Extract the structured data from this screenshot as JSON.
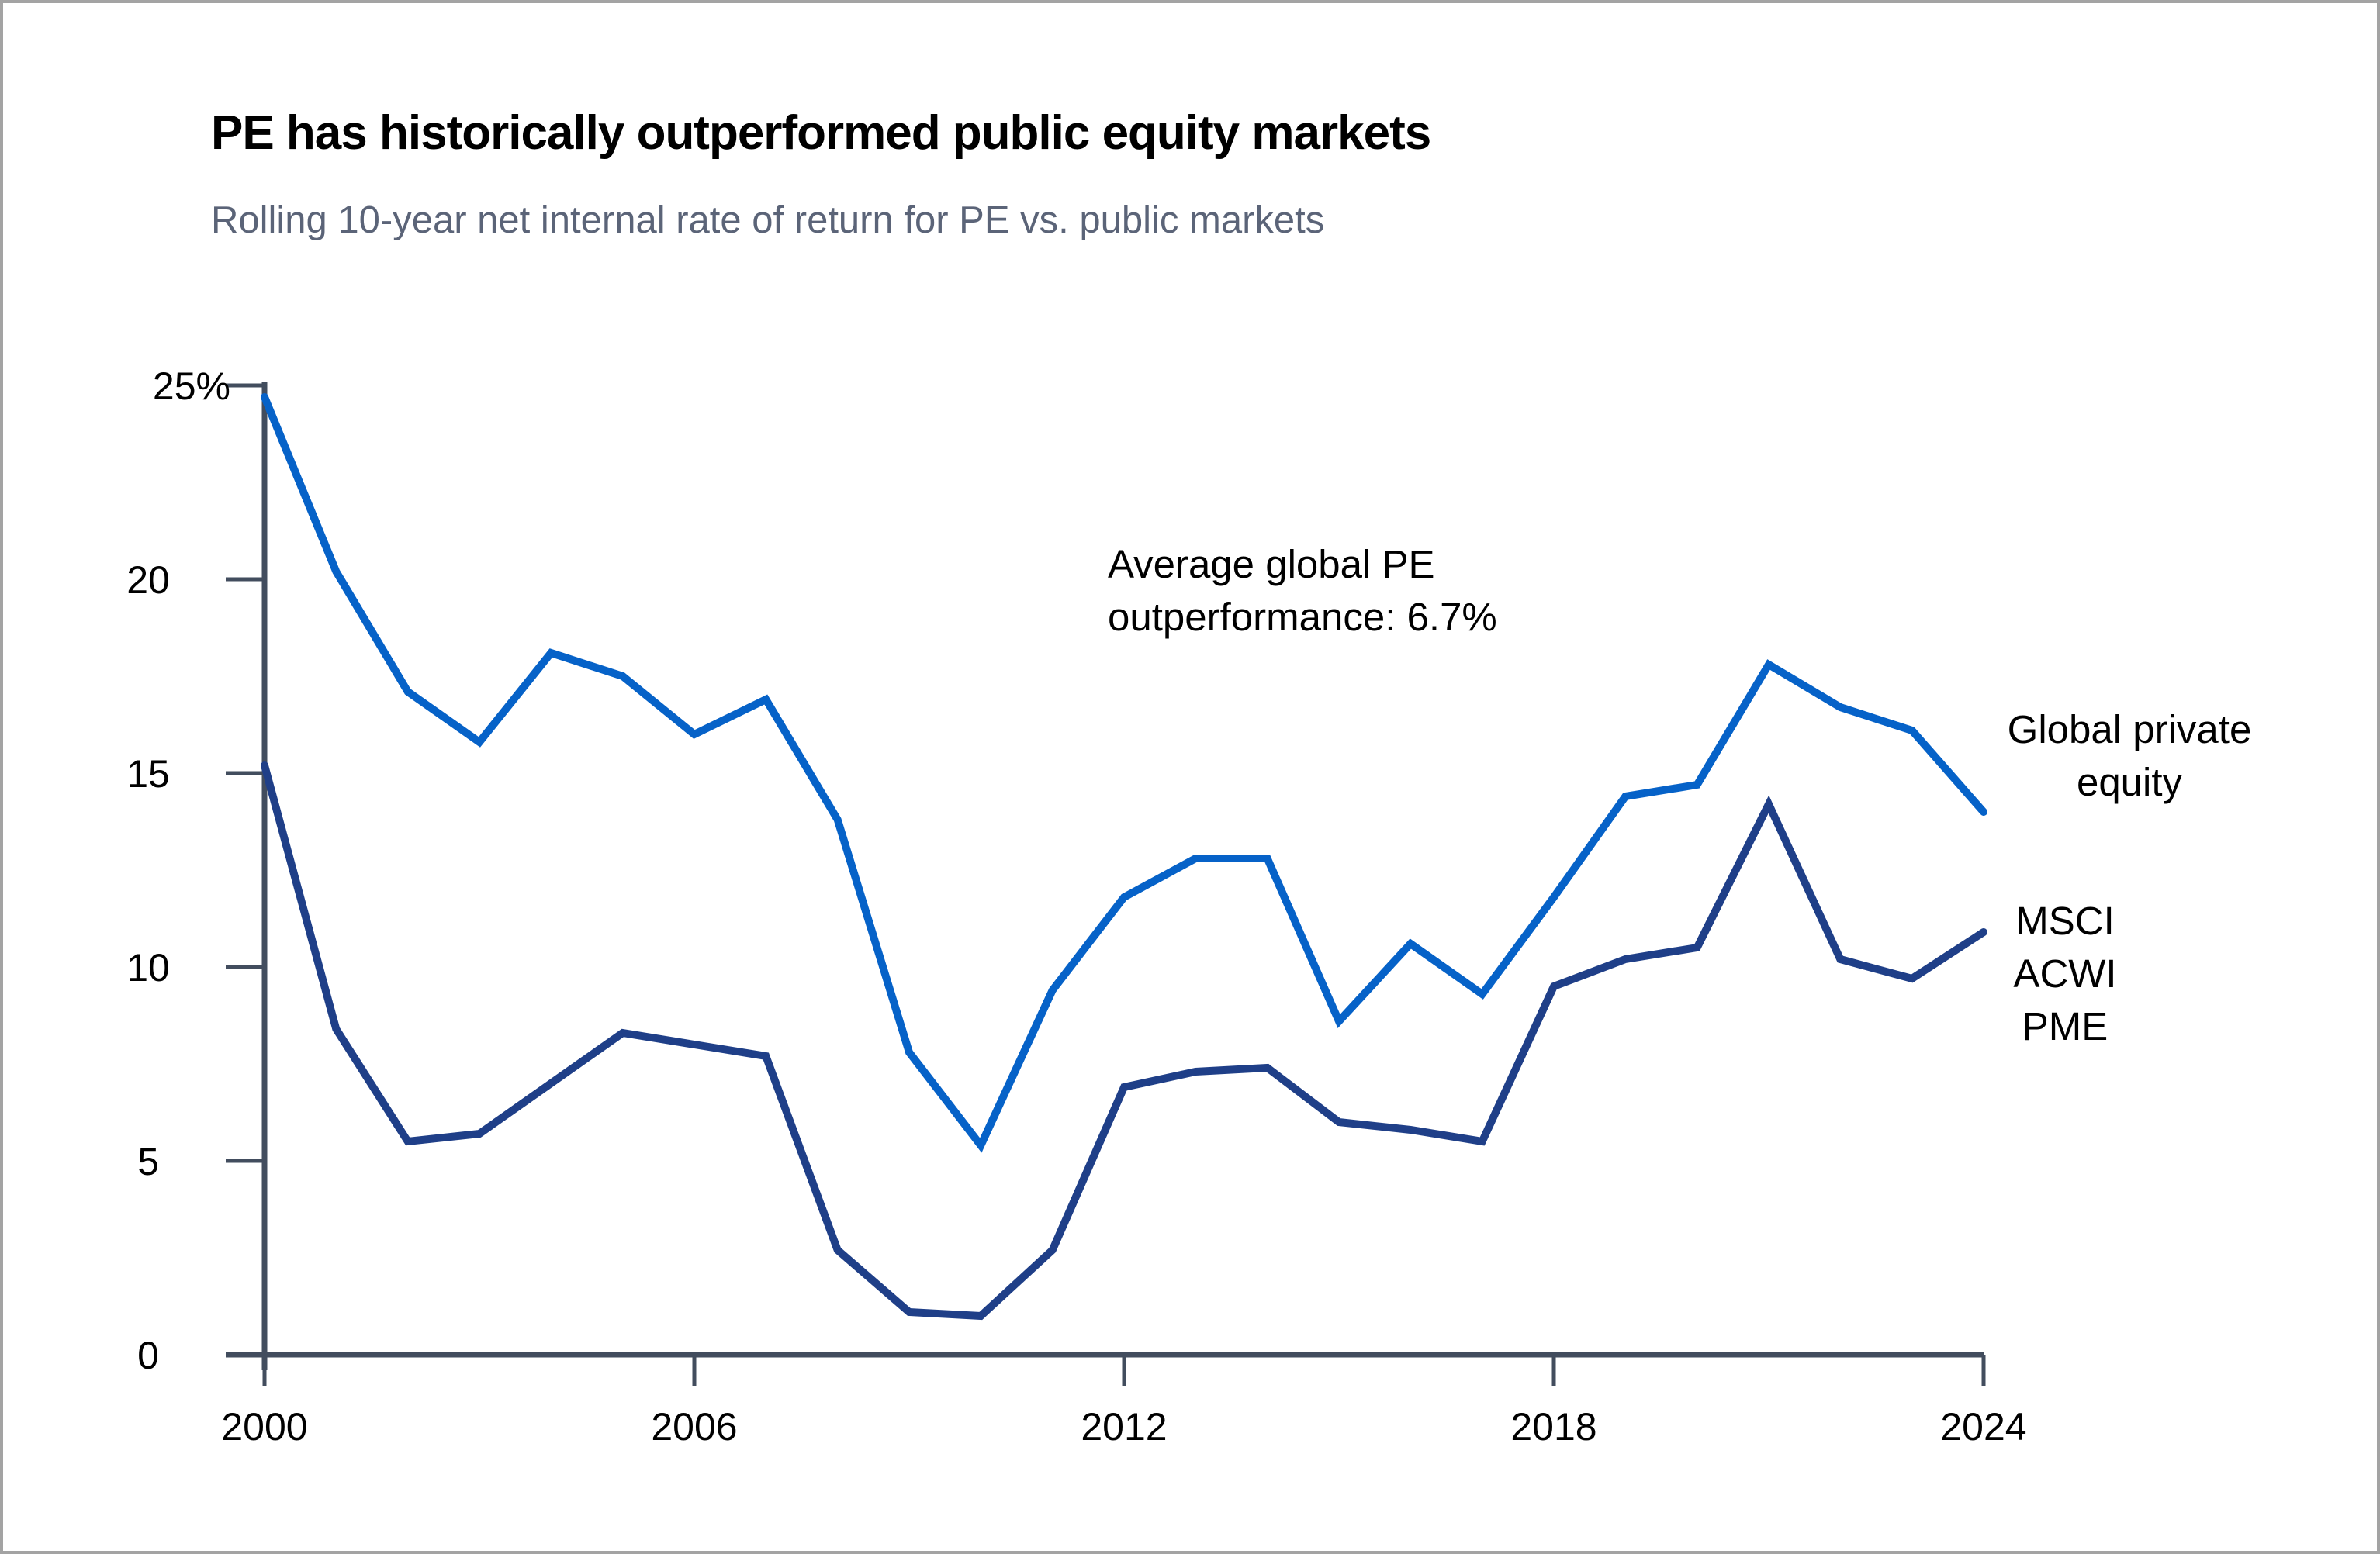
{
  "chart_data": {
    "type": "line",
    "title": "PE has historically outperformed public equity markets",
    "subtitle": "Rolling 10-year net internal rate of return for PE vs. public markets",
    "xlabel": "",
    "ylabel": "",
    "x": [
      2000,
      2001,
      2002,
      2003,
      2004,
      2005,
      2006,
      2007,
      2008,
      2009,
      2010,
      2011,
      2012,
      2013,
      2014,
      2015,
      2016,
      2017,
      2018,
      2019,
      2020,
      2021,
      2022,
      2023,
      2024
    ],
    "xlim": [
      2000,
      2024
    ],
    "ylim": [
      0,
      25
    ],
    "x_ticks": [
      2000,
      2006,
      2012,
      2018,
      2024
    ],
    "x_tick_labels": [
      "2000",
      "2006",
      "2012",
      "2018",
      "2024"
    ],
    "y_ticks": [
      0,
      5,
      10,
      15,
      20,
      25
    ],
    "y_tick_labels": [
      "0",
      "5",
      "10",
      "15",
      "20",
      "25%"
    ],
    "grid": false,
    "legend": "inline-right",
    "series": [
      {
        "name": "Global private equity",
        "label_lines": [
          "Global private",
          "equity"
        ],
        "color": "#0662c8",
        "values": [
          24.7,
          20.2,
          17.1,
          15.8,
          18.1,
          17.5,
          16.0,
          16.9,
          13.8,
          7.8,
          5.4,
          9.4,
          11.8,
          12.8,
          12.8,
          8.6,
          10.6,
          9.3,
          11.8,
          14.4,
          14.7,
          17.8,
          16.7,
          16.1,
          14.0
        ]
      },
      {
        "name": "MSCI ACWI PME",
        "label_lines": [
          "MSCI",
          "ACWI",
          "PME"
        ],
        "color": "#1f3f88",
        "values": [
          15.2,
          8.4,
          5.5,
          5.7,
          7.0,
          8.3,
          8.0,
          7.7,
          2.7,
          1.1,
          1.0,
          2.7,
          6.9,
          7.3,
          7.4,
          6.0,
          5.8,
          5.5,
          9.5,
          10.2,
          10.5,
          14.2,
          10.2,
          9.7,
          10.9
        ]
      }
    ],
    "annotations": [
      {
        "lines": [
          "Average global PE",
          "outperformance: 6.7%"
        ]
      }
    ],
    "axis_color": "#424d5e"
  }
}
